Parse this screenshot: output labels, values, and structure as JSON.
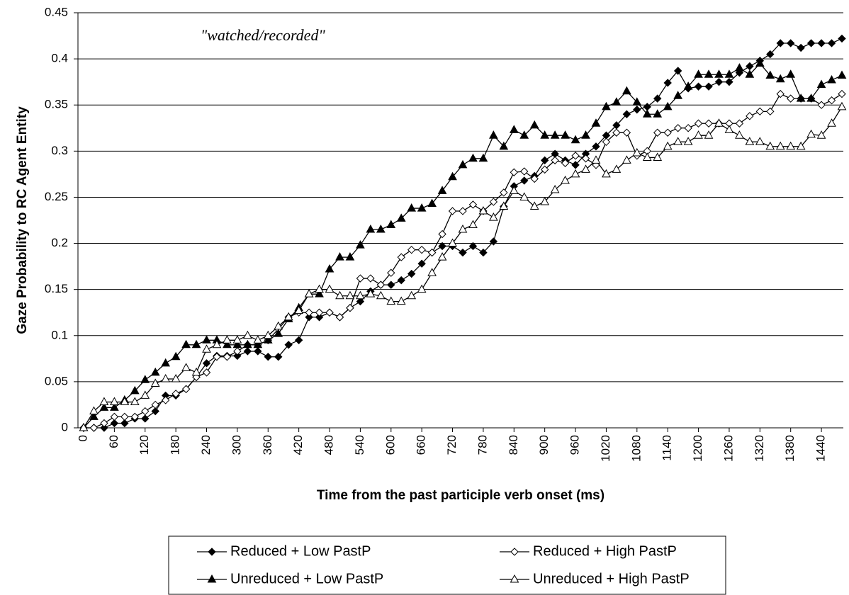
{
  "chart_data": {
    "type": "line",
    "annotation": "\"watched/recorded\"",
    "x_label": "Time from the past participle verb onset (ms)",
    "y_label": "Gaze Probability to RC Agent Entity",
    "x": [
      0,
      20,
      40,
      60,
      80,
      100,
      120,
      140,
      160,
      180,
      200,
      220,
      240,
      260,
      280,
      300,
      320,
      340,
      360,
      380,
      400,
      420,
      440,
      460,
      480,
      500,
      520,
      540,
      560,
      580,
      600,
      620,
      640,
      660,
      680,
      700,
      720,
      740,
      760,
      780,
      800,
      820,
      840,
      860,
      880,
      900,
      920,
      940,
      960,
      980,
      1000,
      1020,
      1040,
      1060,
      1080,
      1100,
      1120,
      1140,
      1160,
      1180,
      1200,
      1220,
      1240,
      1260,
      1280,
      1300,
      1320,
      1340,
      1360,
      1380,
      1400,
      1420,
      1440,
      1460,
      1480
    ],
    "series": [
      {
        "name": "Reduced + Low PastP",
        "color": "#000000",
        "marker": "diamond",
        "marker_fill": "filled",
        "values": [
          0,
          0,
          0,
          0.005,
          0.005,
          0.01,
          0.01,
          0.018,
          0.035,
          0.035,
          0.042,
          0.055,
          0.07,
          0.078,
          0.078,
          0.078,
          0.083,
          0.083,
          0.077,
          0.077,
          0.09,
          0.095,
          0.12,
          0.12,
          0.125,
          0.12,
          0.13,
          0.137,
          0.148,
          0.155,
          0.155,
          0.16,
          0.167,
          0.178,
          0.19,
          0.197,
          0.197,
          0.19,
          0.197,
          0.19,
          0.202,
          0.24,
          0.262,
          0.268,
          0.273,
          0.29,
          0.297,
          0.29,
          0.285,
          0.297,
          0.305,
          0.317,
          0.328,
          0.34,
          0.345,
          0.348,
          0.357,
          0.374,
          0.387,
          0.368,
          0.37,
          0.37,
          0.375,
          0.375,
          0.385,
          0.392,
          0.398,
          0.405,
          0.417,
          0.417,
          0.412,
          0.417,
          0.417,
          0.417,
          0.422
        ]
      },
      {
        "name": "Reduced + High PastP",
        "color": "#000000",
        "marker": "diamond",
        "marker_fill": "open",
        "values": [
          0,
          0,
          0.005,
          0.012,
          0.012,
          0.012,
          0.018,
          0.025,
          0.03,
          0.037,
          0.042,
          0.055,
          0.06,
          0.077,
          0.077,
          0.083,
          0.09,
          0.09,
          0.095,
          0.107,
          0.12,
          0.125,
          0.125,
          0.125,
          0.125,
          0.12,
          0.13,
          0.162,
          0.162,
          0.155,
          0.168,
          0.185,
          0.193,
          0.193,
          0.19,
          0.21,
          0.235,
          0.235,
          0.242,
          0.235,
          0.245,
          0.255,
          0.277,
          0.278,
          0.27,
          0.28,
          0.29,
          0.287,
          0.295,
          0.292,
          0.285,
          0.31,
          0.32,
          0.32,
          0.295,
          0.3,
          0.32,
          0.32,
          0.325,
          0.325,
          0.33,
          0.33,
          0.33,
          0.33,
          0.33,
          0.338,
          0.343,
          0.343,
          0.362,
          0.357,
          0.357,
          0.357,
          0.35,
          0.355,
          0.362
        ]
      },
      {
        "name": "Unreduced + Low PastP",
        "color": "#000000",
        "marker": "triangle",
        "marker_fill": "filled",
        "values": [
          0,
          0.012,
          0.022,
          0.022,
          0.03,
          0.04,
          0.052,
          0.06,
          0.07,
          0.077,
          0.09,
          0.09,
          0.095,
          0.095,
          0.09,
          0.09,
          0.09,
          0.09,
          0.095,
          0.102,
          0.118,
          0.13,
          0.145,
          0.145,
          0.172,
          0.185,
          0.185,
          0.198,
          0.215,
          0.215,
          0.22,
          0.227,
          0.238,
          0.238,
          0.243,
          0.257,
          0.272,
          0.285,
          0.292,
          0.292,
          0.317,
          0.305,
          0.323,
          0.317,
          0.328,
          0.317,
          0.317,
          0.317,
          0.312,
          0.317,
          0.33,
          0.348,
          0.353,
          0.365,
          0.353,
          0.34,
          0.34,
          0.348,
          0.36,
          0.37,
          0.383,
          0.383,
          0.383,
          0.383,
          0.39,
          0.383,
          0.395,
          0.382,
          0.378,
          0.383,
          0.357,
          0.357,
          0.372,
          0.377,
          0.382
        ]
      },
      {
        "name": "Unreduced + High PastP",
        "color": "#000000",
        "marker": "triangle",
        "marker_fill": "open",
        "values": [
          0,
          0.018,
          0.028,
          0.028,
          0.028,
          0.028,
          0.035,
          0.048,
          0.053,
          0.053,
          0.065,
          0.06,
          0.085,
          0.09,
          0.095,
          0.095,
          0.1,
          0.095,
          0.1,
          0.11,
          0.12,
          0.127,
          0.145,
          0.15,
          0.15,
          0.143,
          0.143,
          0.143,
          0.145,
          0.143,
          0.137,
          0.137,
          0.143,
          0.15,
          0.168,
          0.185,
          0.2,
          0.215,
          0.22,
          0.235,
          0.228,
          0.24,
          0.257,
          0.25,
          0.24,
          0.245,
          0.258,
          0.268,
          0.275,
          0.28,
          0.29,
          0.275,
          0.28,
          0.29,
          0.298,
          0.293,
          0.293,
          0.305,
          0.31,
          0.31,
          0.317,
          0.317,
          0.33,
          0.323,
          0.317,
          0.31,
          0.31,
          0.305,
          0.305,
          0.305,
          0.305,
          0.318,
          0.317,
          0.33,
          0.348
        ]
      }
    ],
    "xlim": [
      0,
      1480
    ],
    "xticks": [
      0,
      60,
      120,
      180,
      240,
      300,
      360,
      420,
      480,
      540,
      600,
      660,
      720,
      780,
      840,
      900,
      960,
      1020,
      1080,
      1140,
      1200,
      1260,
      1320,
      1380,
      1440
    ],
    "ylim": [
      0,
      0.45
    ],
    "yticks": [
      0,
      0.05,
      0.1,
      0.15,
      0.2,
      0.25,
      0.3,
      0.35,
      0.4,
      0.45
    ],
    "grid": true,
    "legend": "bottom"
  }
}
